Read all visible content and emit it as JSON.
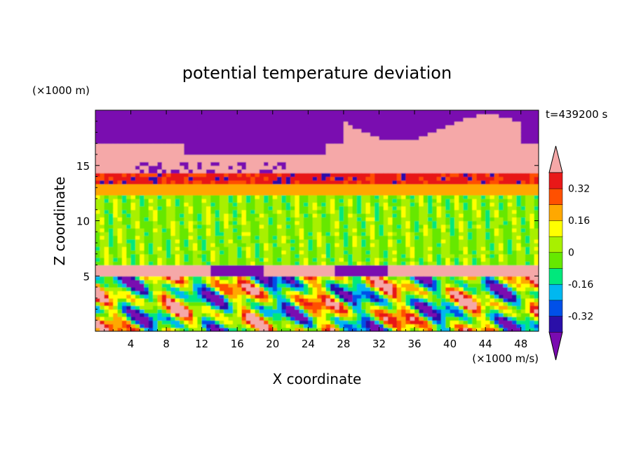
{
  "chart_data": {
    "type": "heatmap",
    "title": "potential temperature deviation",
    "xlabel": "X coordinate",
    "ylabel": "Z coordinate",
    "x_unit": "(×1000 m/s)",
    "y_unit": "(×1000 m)",
    "time_label": "t=439200 s",
    "xlim": [
      0,
      50
    ],
    "ylim": [
      0,
      20
    ],
    "x_ticks": [
      4,
      8,
      12,
      16,
      20,
      24,
      28,
      32,
      36,
      40,
      44,
      48
    ],
    "y_ticks": [
      5,
      10,
      15
    ],
    "colorbar": {
      "levels": [
        -0.48,
        -0.4,
        -0.32,
        -0.24,
        -0.16,
        -0.08,
        0,
        0.08,
        0.16,
        0.24,
        0.32,
        0.4
      ],
      "labels": [
        "-0.32",
        "-0.16",
        "0",
        "0.16",
        "0.32"
      ],
      "label_values": [
        -0.32,
        -0.16,
        0,
        0.16,
        0.32
      ],
      "colors": [
        "#7a0bb0",
        "#2a0fa8",
        "#0050e8",
        "#00b8f0",
        "#00e87c",
        "#66e800",
        "#a8f000",
        "#ffff00",
        "#ffa800",
        "#ff5000",
        "#e81818",
        "#f5a8a8"
      ],
      "extend": "both"
    },
    "layers": [
      {
        "z": [
          0,
          5
        ],
        "description_value": "mixed -0.5..0.5"
      },
      {
        "z": [
          5,
          6
        ],
        "value": 0.45
      },
      {
        "z": [
          6,
          12.5
        ],
        "value": 0.0
      },
      {
        "z": [
          12.5,
          14
        ],
        "value": 0.2
      },
      {
        "z": [
          14,
          17
        ],
        "value": 0.45
      },
      {
        "z": [
          17,
          20
        ],
        "value": -0.5
      }
    ]
  }
}
